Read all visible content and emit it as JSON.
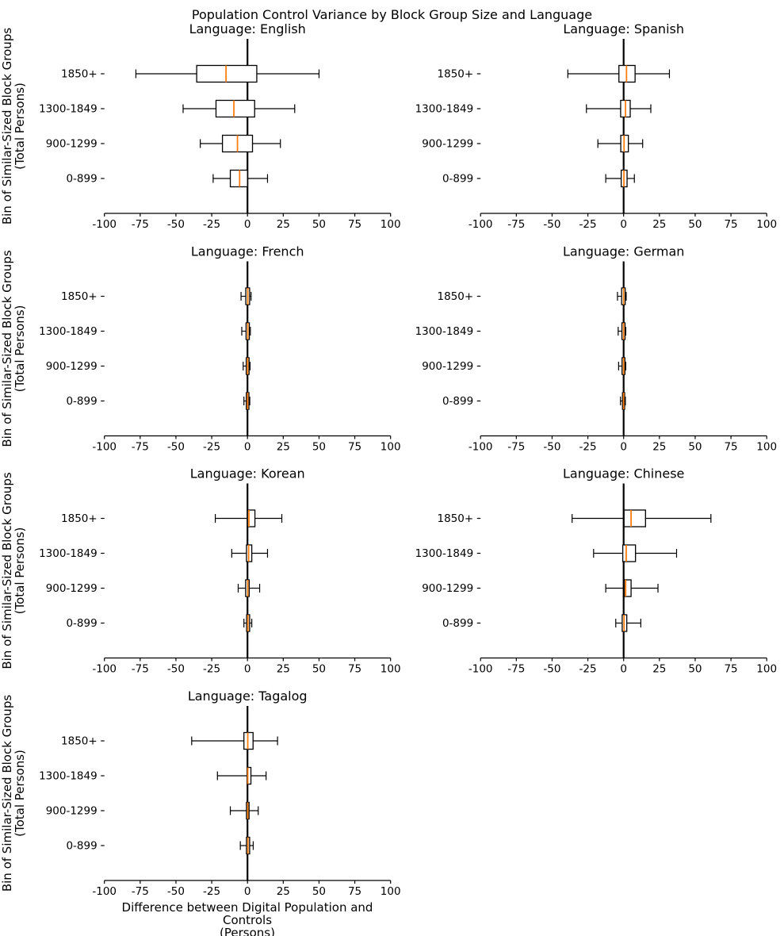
{
  "figure": {
    "title": "Population Control Variance by Block Group Size and Language",
    "xlabel": [
      "Difference between Digital Population and Controls",
      "(Persons)"
    ],
    "ylabel": [
      "Bin of Similar-Sized Block Groups",
      "(Total Persons)"
    ],
    "colors": {
      "background": "#ffffff",
      "text": "#000000",
      "axis": "#000000",
      "box_edge": "#000000",
      "median": "#ff7f0e",
      "zero_line": "#000000"
    }
  },
  "chart_data": {
    "type": "bar",
    "subtype": "horizontal-boxplot-grid",
    "grid_layout": "4 rows x 2 columns, last cell empty",
    "xlim": [
      -100,
      100
    ],
    "x_ticks": [
      -100,
      -75,
      -50,
      -25,
      0,
      25,
      50,
      75,
      100
    ],
    "zero_reference_line": 0,
    "categories_top_to_bottom": [
      "1850+",
      "1300-1849",
      "900-1299",
      "0-899"
    ],
    "subplots": [
      {
        "title": "Language: English",
        "boxes": [
          {
            "bin": "1850+",
            "whisker_low": -78,
            "q1": -35.5,
            "median": -15,
            "q3": 6.5,
            "whisker_high": 50
          },
          {
            "bin": "1300-1849",
            "whisker_low": -45,
            "q1": -22,
            "median": -9.5,
            "q3": 5,
            "whisker_high": 33
          },
          {
            "bin": "900-1299",
            "whisker_low": -33,
            "q1": -17.5,
            "median": -7,
            "q3": 3.5,
            "whisker_high": 23
          },
          {
            "bin": "0-899",
            "whisker_low": -24,
            "q1": -12,
            "median": -5.5,
            "q3": 0,
            "whisker_high": 14
          }
        ]
      },
      {
        "title": "Language: Spanish",
        "boxes": [
          {
            "bin": "1850+",
            "whisker_low": -39,
            "q1": -3.3,
            "median": 2,
            "q3": 8,
            "whisker_high": 32
          },
          {
            "bin": "1300-1849",
            "whisker_low": -26,
            "q1": -2.1,
            "median": 1.3,
            "q3": 4.6,
            "whisker_high": 19
          },
          {
            "bin": "900-1299",
            "whisker_low": -18,
            "q1": -2,
            "median": 0.3,
            "q3": 3.3,
            "whisker_high": 13.3
          },
          {
            "bin": "0-899",
            "whisker_low": -12.5,
            "q1": -1.7,
            "median": 0.2,
            "q3": 2.4,
            "whisker_high": 7.5
          }
        ]
      },
      {
        "title": "Language: French",
        "boxes": [
          {
            "bin": "1850+",
            "whisker_low": -4.5,
            "q1": -1.2,
            "median": 0.2,
            "q3": 1.5,
            "whisker_high": 2.5
          },
          {
            "bin": "1300-1849",
            "whisker_low": -4,
            "q1": -1,
            "median": 0.2,
            "q3": 1.3,
            "whisker_high": 2
          },
          {
            "bin": "900-1299",
            "whisker_low": -3,
            "q1": -0.9,
            "median": 0.1,
            "q3": 1.1,
            "whisker_high": 1.8
          },
          {
            "bin": "0-899",
            "whisker_low": -2.5,
            "q1": -0.8,
            "median": 0.1,
            "q3": 1,
            "whisker_high": 1.6
          }
        ]
      },
      {
        "title": "Language: German",
        "boxes": [
          {
            "bin": "1850+",
            "whisker_low": -4.3,
            "q1": -1.4,
            "median": 0,
            "q3": 1.1,
            "whisker_high": 1.8
          },
          {
            "bin": "1300-1849",
            "whisker_low": -3.8,
            "q1": -1.2,
            "median": 0,
            "q3": 1,
            "whisker_high": 1.5
          },
          {
            "bin": "900-1299",
            "whisker_low": -3.5,
            "q1": -1.1,
            "median": 0,
            "q3": 0.9,
            "whisker_high": 1.5
          },
          {
            "bin": "0-899",
            "whisker_low": -2.2,
            "q1": -0.8,
            "median": 0,
            "q3": 0.7,
            "whisker_high": 1.2
          }
        ]
      },
      {
        "title": "Language: Korean",
        "boxes": [
          {
            "bin": "1850+",
            "whisker_low": -22.5,
            "q1": 0,
            "median": 1,
            "q3": 5.2,
            "whisker_high": 24
          },
          {
            "bin": "1300-1849",
            "whisker_low": -11,
            "q1": -0.7,
            "median": 0.8,
            "q3": 3,
            "whisker_high": 14
          },
          {
            "bin": "900-1299",
            "whisker_low": -6.5,
            "q1": -1.3,
            "median": 0.2,
            "q3": 1.2,
            "whisker_high": 8.5
          },
          {
            "bin": "0-899",
            "whisker_low": -2.5,
            "q1": -0.6,
            "median": 0.3,
            "q3": 1.5,
            "whisker_high": 3
          }
        ]
      },
      {
        "title": "Language: Chinese",
        "boxes": [
          {
            "bin": "1850+",
            "whisker_low": -36,
            "q1": 0.3,
            "median": 5.2,
            "q3": 15.3,
            "whisker_high": 61
          },
          {
            "bin": "1300-1849",
            "whisker_low": -21,
            "q1": -0.6,
            "median": 1.8,
            "q3": 8.3,
            "whisker_high": 37
          },
          {
            "bin": "900-1299",
            "whisker_low": -12.5,
            "q1": 0.5,
            "median": 1.4,
            "q3": 5.2,
            "whisker_high": 24
          },
          {
            "bin": "0-899",
            "whisker_low": -5.5,
            "q1": -1,
            "median": 0.3,
            "q3": 2.2,
            "whisker_high": 12
          }
        ]
      },
      {
        "title": "Language: Tagalog",
        "boxes": [
          {
            "bin": "1850+",
            "whisker_low": -39,
            "q1": -2.5,
            "median": 0.2,
            "q3": 3.9,
            "whisker_high": 21
          },
          {
            "bin": "1300-1849",
            "whisker_low": -21,
            "q1": -0.3,
            "median": 0.2,
            "q3": 2.4,
            "whisker_high": 13
          },
          {
            "bin": "900-1299",
            "whisker_low": -12,
            "q1": -0.7,
            "median": 0.2,
            "q3": 1.1,
            "whisker_high": 7.5
          },
          {
            "bin": "0-899",
            "whisker_low": -5,
            "q1": -0.7,
            "median": 0.3,
            "q3": 1.5,
            "whisker_high": 4
          }
        ]
      }
    ]
  }
}
